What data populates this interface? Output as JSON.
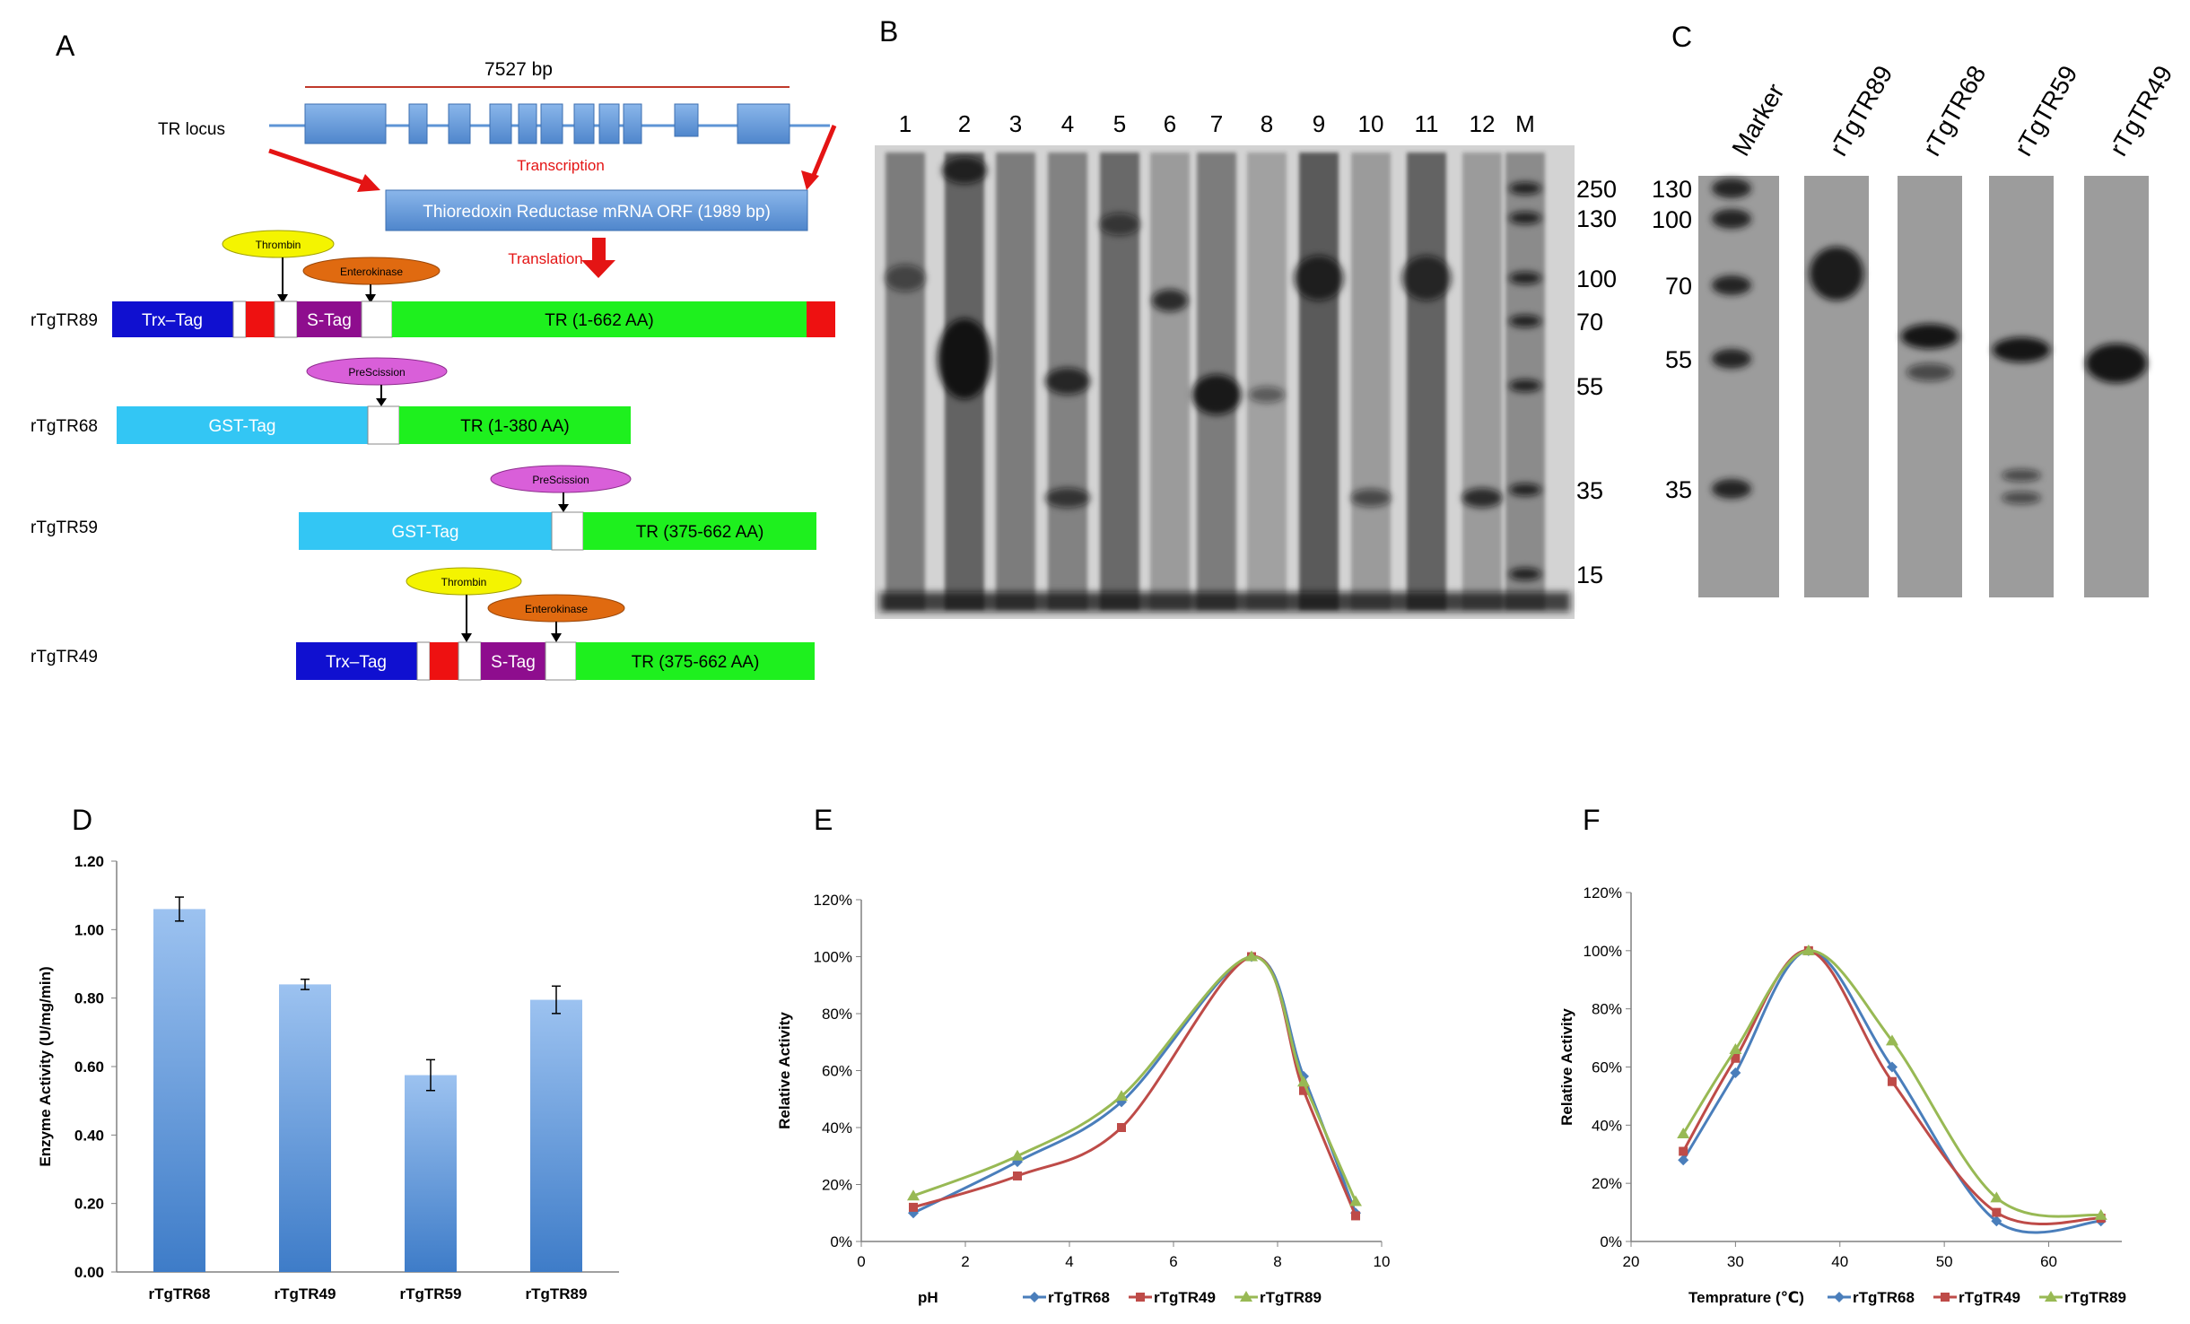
{
  "panel_labels": [
    "A",
    "B",
    "C",
    "D",
    "E",
    "F"
  ],
  "panel_a": {
    "locus_size": "7527 bp",
    "locus_label": "TR locus",
    "transcription": "Transcription",
    "mrna": "Thioredoxin Reductase mRNA ORF (1989 bp)",
    "translation": "Translation",
    "constructs": [
      {
        "name": "rTgTR89",
        "tags": [
          "Trx–Tag",
          "S-Tag"
        ],
        "tr": "TR (1-662 AA)",
        "sites": [
          "Thrombin",
          "Enterokinase"
        ]
      },
      {
        "name": "rTgTR68",
        "tags": [
          "GST-Tag"
        ],
        "tr": "TR (1-380 AA)",
        "sites": [
          "PreScission"
        ]
      },
      {
        "name": "rTgTR59",
        "tags": [
          "GST-Tag"
        ],
        "tr": "TR (375-662 AA)",
        "sites": [
          "PreScission"
        ]
      },
      {
        "name": "rTgTR49",
        "tags": [
          "Trx–Tag",
          "S-Tag"
        ],
        "tr": "TR (375-662 AA)",
        "sites": [
          "Thrombin",
          "Enterokinase"
        ]
      }
    ],
    "colors": {
      "trx": "#1010d0",
      "gst": "#33c6f4",
      "stag": "#8e0d8e",
      "tr": "#1ef01e",
      "his": "#ee1111",
      "locus": "#5e95d6",
      "thrombin": "#f4f400",
      "enterokinase": "#e06a10",
      "prescission": "#d95fd9",
      "arrow": "#e41414"
    }
  },
  "panel_b": {
    "lanes": [
      "1",
      "2",
      "3",
      "4",
      "5",
      "6",
      "7",
      "8",
      "9",
      "10",
      "11",
      "12",
      "M"
    ],
    "markers": [
      "250",
      "130",
      "100",
      "70",
      "55",
      "35",
      "15"
    ]
  },
  "panel_c": {
    "lanes": [
      "Marker",
      "rTgTR89",
      "rTgTR68",
      "rTgTR59",
      "rTgTR49"
    ],
    "markers": [
      "130",
      "100",
      "70",
      "55",
      "35"
    ]
  },
  "chart_data": [
    {
      "panel": "D",
      "type": "bar",
      "categories": [
        "rTgTR68",
        "rTgTR49",
        "rTgTR59",
        "rTgTR89"
      ],
      "values": [
        1.06,
        0.84,
        0.575,
        0.795
      ],
      "errors": [
        0.035,
        0.015,
        0.045,
        0.04
      ],
      "ylabel": "Enzyme Activity (U/mg/min)",
      "yticks": [
        "0.00",
        "0.20",
        "0.40",
        "0.60",
        "0.80",
        "1.00",
        "1.20"
      ],
      "ylim": [
        0,
        1.2
      ],
      "bar_color": "#5b97dc"
    },
    {
      "panel": "E",
      "type": "line",
      "xlabel": "pH",
      "ylabel": "Relative Activity",
      "xlim": [
        0,
        10
      ],
      "ylim": [
        0,
        1.2
      ],
      "xticks": [
        "0",
        "2",
        "4",
        "6",
        "8",
        "10"
      ],
      "yticks": [
        "0%",
        "20%",
        "40%",
        "60%",
        "80%",
        "100%",
        "120%"
      ],
      "series": [
        {
          "name": "rTgTR68",
          "color": "#4a7ebb",
          "marker": "diamond",
          "x": [
            1,
            3,
            5,
            7.5,
            8.5,
            9.5
          ],
          "y": [
            0.1,
            0.28,
            0.49,
            1.0,
            0.58,
            0.1
          ]
        },
        {
          "name": "rTgTR49",
          "color": "#be4b48",
          "marker": "square",
          "x": [
            1,
            3,
            5,
            7.5,
            8.5,
            9.5
          ],
          "y": [
            0.12,
            0.23,
            0.4,
            1.0,
            0.53,
            0.09
          ]
        },
        {
          "name": "rTgTR89",
          "color": "#98b954",
          "marker": "triangle",
          "x": [
            1,
            3,
            5,
            7.5,
            8.5,
            9.5
          ],
          "y": [
            0.16,
            0.3,
            0.51,
            1.0,
            0.56,
            0.14
          ]
        }
      ]
    },
    {
      "panel": "F",
      "type": "line",
      "xlabel": "Temprature (℃)",
      "ylabel": "Relative Activity",
      "xlim": [
        20,
        67
      ],
      "ylim": [
        0,
        1.2
      ],
      "xticks": [
        "20",
        "30",
        "40",
        "50",
        "60"
      ],
      "yticks": [
        "0%",
        "20%",
        "40%",
        "60%",
        "80%",
        "100%",
        "120%"
      ],
      "series": [
        {
          "name": "rTgTR68",
          "color": "#4a7ebb",
          "marker": "diamond",
          "x": [
            25,
            30,
            37,
            45,
            55,
            65
          ],
          "y": [
            0.28,
            0.58,
            1.0,
            0.6,
            0.07,
            0.07
          ]
        },
        {
          "name": "rTgTR49",
          "color": "#be4b48",
          "marker": "square",
          "x": [
            25,
            30,
            37,
            45,
            55,
            65
          ],
          "y": [
            0.31,
            0.63,
            1.0,
            0.55,
            0.1,
            0.08
          ]
        },
        {
          "name": "rTgTR89",
          "color": "#98b954",
          "marker": "triangle",
          "x": [
            25,
            30,
            37,
            45,
            55,
            65
          ],
          "y": [
            0.37,
            0.66,
            1.0,
            0.69,
            0.15,
            0.09
          ]
        }
      ]
    }
  ]
}
